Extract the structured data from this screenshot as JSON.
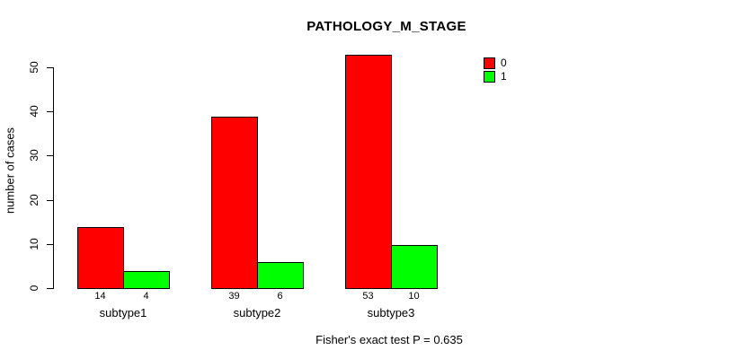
{
  "chart_data": {
    "type": "bar",
    "title": "PATHOLOGY_M_STAGE",
    "ylabel": "number of cases",
    "xlabel": "",
    "categories": [
      "subtype1",
      "subtype2",
      "subtype3"
    ],
    "series": [
      {
        "name": "0",
        "color": "#ff0000",
        "values": [
          14,
          39,
          53
        ]
      },
      {
        "name": "1",
        "color": "#00ff00",
        "values": [
          4,
          6,
          10
        ]
      }
    ],
    "yticks": [
      0,
      10,
      20,
      30,
      40,
      50
    ],
    "ylim": [
      0,
      50
    ],
    "grid": false,
    "legend_position": "top-right",
    "bar_border_color": "#000000",
    "axis_color": "#000000",
    "annotation": "Fisher's exact test P = 0.635"
  }
}
